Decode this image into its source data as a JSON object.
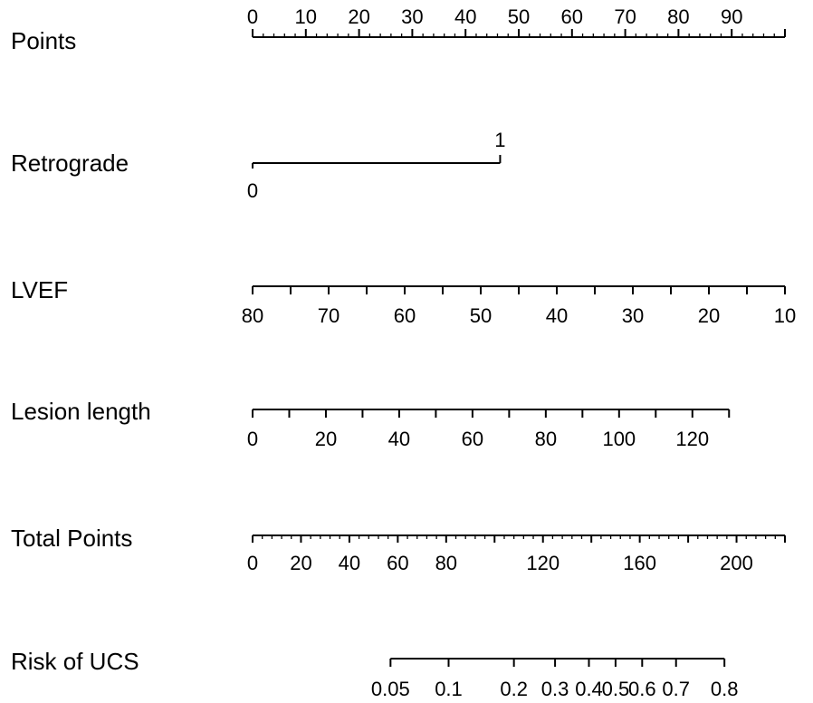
{
  "chart_data": {
    "type": "nomogram",
    "title": "",
    "points_range": [
      0,
      100
    ],
    "total_points_range": [
      0,
      220
    ],
    "axes": [
      {
        "key": "points",
        "label": "Points",
        "scale": "points",
        "range": [
          0,
          100
        ],
        "major_ticks": [
          0,
          10,
          20,
          30,
          40,
          50,
          60,
          70,
          80,
          90,
          100
        ],
        "tick_labels": [
          "0",
          "10",
          "20",
          "30",
          "40",
          "50",
          "60",
          "70",
          "80",
          "90"
        ],
        "minor_step": 2,
        "labels_above": true
      },
      {
        "key": "retrograde",
        "label": "Retrograde",
        "scale": "categorical",
        "levels": [
          {
            "value": "0",
            "points": 0,
            "label_position": "below"
          },
          {
            "value": "1",
            "points": 46.5,
            "label_position": "above"
          }
        ]
      },
      {
        "key": "lvef",
        "label": "LVEF",
        "scale": "linear",
        "points_at_ends": [
          [
            80,
            0
          ],
          [
            10,
            100
          ]
        ],
        "major_ticks": [
          80,
          75,
          70,
          65,
          60,
          55,
          50,
          45,
          40,
          35,
          30,
          25,
          20,
          15,
          10
        ],
        "tick_labels": [
          "80",
          "70",
          "60",
          "50",
          "40",
          "30",
          "20",
          "10"
        ]
      },
      {
        "key": "lesion_length",
        "label": "Lesion length",
        "scale": "linear",
        "points_at_ends": [
          [
            0,
            0
          ],
          [
            130,
            89.5
          ]
        ],
        "major_ticks": [
          0,
          10,
          20,
          30,
          40,
          50,
          60,
          70,
          80,
          90,
          100,
          110,
          120,
          130
        ],
        "tick_labels": [
          "0",
          "20",
          "40",
          "60",
          "80",
          "100",
          "120"
        ]
      },
      {
        "key": "total_points",
        "label": "Total Points",
        "scale": "total",
        "range": [
          0,
          220
        ],
        "major_ticks": [
          0,
          20,
          40,
          60,
          80,
          100,
          120,
          140,
          160,
          180,
          200,
          220
        ],
        "tick_labels": [
          "0",
          "20",
          "40",
          "60",
          "80",
          "120",
          "160",
          "200"
        ],
        "minor_step": 4
      },
      {
        "key": "risk",
        "label": "Risk of UCS",
        "scale": "risk",
        "ticks": [
          {
            "value": "0.05",
            "total_points": 57
          },
          {
            "value": "0.1",
            "total_points": 81
          },
          {
            "value": "0.2",
            "total_points": 108
          },
          {
            "value": "0.3",
            "total_points": 125
          },
          {
            "value": "0.4",
            "total_points": 139
          },
          {
            "value": "0.5",
            "total_points": 150
          },
          {
            "value": "0.6",
            "total_points": 161
          },
          {
            "value": "0.7",
            "total_points": 175
          },
          {
            "value": "0.8",
            "total_points": 195
          }
        ]
      }
    ]
  }
}
